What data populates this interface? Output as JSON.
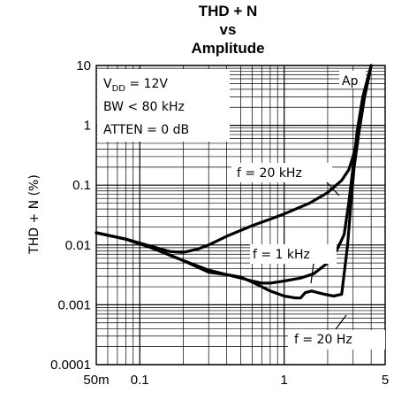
{
  "chart_data": {
    "type": "line",
    "title": "THD + N",
    "title_line2": "vs",
    "title_line3": "Amplitude",
    "xlabel": "",
    "ylabel": "THD + N (%)",
    "x_scale": "log",
    "y_scale": "log",
    "xlim": [
      0.05,
      5
    ],
    "ylim": [
      0.0001,
      10
    ],
    "grid": true,
    "x_ticks": [
      {
        "value": 0.05,
        "label": "50m"
      },
      {
        "value": 0.1,
        "label": "0.1"
      },
      {
        "value": 1,
        "label": "1"
      },
      {
        "value": 5,
        "label": "5"
      }
    ],
    "y_ticks": [
      {
        "value": 10,
        "label": "10"
      },
      {
        "value": 1,
        "label": "1"
      },
      {
        "value": 0.1,
        "label": "0.1"
      },
      {
        "value": 0.01,
        "label": "0.01"
      },
      {
        "value": 0.001,
        "label": "0.001"
      },
      {
        "value": 0.0001,
        "label": "0.0001"
      }
    ],
    "conditions": [
      "V_DD = 12V",
      "BW < 80 kHz",
      "ATTEN = 0 dB"
    ],
    "condition_parts": {
      "vdd_main": "V",
      "vdd_sub": "DD",
      "vdd_rest": " = 12V"
    },
    "badge": "Ap",
    "series": [
      {
        "name": "f = 20 kHz",
        "x": [
          0.05,
          0.08,
          0.12,
          0.16,
          0.2,
          0.25,
          0.3,
          0.4,
          0.6,
          0.8,
          1.0,
          1.5,
          2.0,
          2.5,
          2.8,
          3.0,
          3.3,
          3.6,
          4.0
        ],
        "y": [
          0.016,
          0.0125,
          0.0095,
          0.0078,
          0.0075,
          0.0085,
          0.01,
          0.014,
          0.021,
          0.027,
          0.033,
          0.05,
          0.075,
          0.12,
          0.18,
          0.3,
          0.8,
          3.0,
          10.0
        ]
      },
      {
        "name": "f = 1 kHz",
        "x": [
          0.05,
          0.08,
          0.12,
          0.2,
          0.3,
          0.4,
          0.5,
          0.6,
          0.7,
          0.8,
          1.0,
          1.3,
          1.6,
          2.0,
          2.3,
          2.6,
          2.8,
          3.0,
          3.2,
          3.5,
          4.0
        ],
        "y": [
          0.016,
          0.0125,
          0.009,
          0.0055,
          0.0038,
          0.0032,
          0.0028,
          0.0025,
          0.0023,
          0.0023,
          0.0025,
          0.0028,
          0.0033,
          0.005,
          0.008,
          0.015,
          0.05,
          0.2,
          0.8,
          3.0,
          10.0
        ]
      },
      {
        "name": "f = 20 Hz",
        "x": [
          0.05,
          0.08,
          0.12,
          0.2,
          0.3,
          0.4,
          0.5,
          0.6,
          0.7,
          0.8,
          1.0,
          1.2,
          1.3,
          1.4,
          1.55,
          1.7,
          1.9,
          2.2,
          2.5,
          2.75,
          2.9,
          3.05,
          3.3,
          3.6,
          4.0
        ],
        "y": [
          0.016,
          0.0125,
          0.009,
          0.0055,
          0.0035,
          0.0032,
          0.0029,
          0.0024,
          0.002,
          0.0017,
          0.0014,
          0.0013,
          0.0013,
          0.0016,
          0.0017,
          0.0016,
          0.0015,
          0.0014,
          0.0015,
          0.01,
          0.05,
          0.2,
          0.8,
          3.0,
          10.0
        ]
      }
    ]
  }
}
